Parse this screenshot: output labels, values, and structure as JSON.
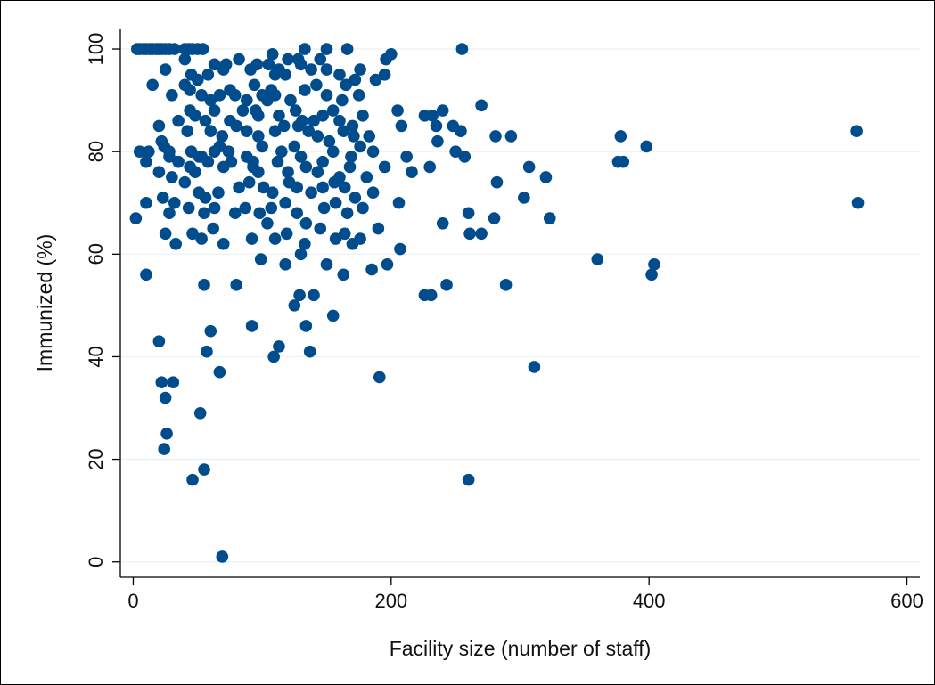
{
  "chart_data": {
    "type": "scatter",
    "title": "",
    "xlabel": "Facility size (number of staff)",
    "ylabel": "Immunized (%)",
    "xlim": [
      -10,
      610
    ],
    "ylim": [
      -3,
      104
    ],
    "xticks": [
      0,
      200,
      400,
      600
    ],
    "yticks": [
      0,
      20,
      40,
      60,
      80,
      100
    ],
    "grid": "horizontal",
    "marker_color": "#004c8c",
    "points": [
      [
        3,
        100
      ],
      [
        5,
        100
      ],
      [
        8,
        100
      ],
      [
        10,
        100
      ],
      [
        13,
        100
      ],
      [
        15,
        100
      ],
      [
        18,
        100
      ],
      [
        20,
        100
      ],
      [
        22,
        100
      ],
      [
        25,
        100
      ],
      [
        28,
        100
      ],
      [
        32,
        100
      ],
      [
        40,
        100
      ],
      [
        43,
        100
      ],
      [
        46,
        100
      ],
      [
        50,
        100
      ],
      [
        54,
        100
      ],
      [
        133,
        100
      ],
      [
        150,
        100
      ],
      [
        166,
        100
      ],
      [
        255,
        100
      ],
      [
        200,
        99
      ],
      [
        108,
        99
      ],
      [
        120,
        98
      ],
      [
        128,
        98
      ],
      [
        145,
        98
      ],
      [
        40,
        98
      ],
      [
        63,
        97
      ],
      [
        72,
        97
      ],
      [
        96,
        97
      ],
      [
        105,
        97
      ],
      [
        113,
        96
      ],
      [
        130,
        97
      ],
      [
        150,
        96
      ],
      [
        160,
        95
      ],
      [
        176,
        96
      ],
      [
        188,
        94
      ],
      [
        195,
        95
      ],
      [
        196,
        98
      ],
      [
        25,
        96
      ],
      [
        45,
        95
      ],
      [
        50,
        94
      ],
      [
        58,
        95
      ],
      [
        70,
        96
      ],
      [
        82,
        98
      ],
      [
        91,
        96
      ],
      [
        94,
        93
      ],
      [
        100,
        91
      ],
      [
        107,
        92
      ],
      [
        110,
        95
      ],
      [
        118,
        95
      ],
      [
        138,
        96
      ],
      [
        142,
        93
      ],
      [
        165,
        93
      ],
      [
        172,
        94
      ],
      [
        15,
        93
      ],
      [
        30,
        91
      ],
      [
        40,
        93
      ],
      [
        44,
        92
      ],
      [
        53,
        91
      ],
      [
        60,
        90
      ],
      [
        67,
        91
      ],
      [
        75,
        92
      ],
      [
        79,
        91
      ],
      [
        88,
        90
      ],
      [
        95,
        88
      ],
      [
        104,
        90
      ],
      [
        110,
        91
      ],
      [
        122,
        90
      ],
      [
        133,
        92
      ],
      [
        150,
        91
      ],
      [
        162,
        90
      ],
      [
        175,
        91
      ],
      [
        44,
        88
      ],
      [
        48,
        87
      ],
      [
        56,
        86
      ],
      [
        63,
        88
      ],
      [
        75,
        86
      ],
      [
        85,
        88
      ],
      [
        97,
        87
      ],
      [
        113,
        87
      ],
      [
        126,
        88
      ],
      [
        131,
        86
      ],
      [
        140,
        86
      ],
      [
        147,
        87
      ],
      [
        155,
        88
      ],
      [
        160,
        86
      ],
      [
        170,
        85
      ],
      [
        178,
        87
      ],
      [
        205,
        88
      ],
      [
        240,
        88
      ],
      [
        248,
        85
      ],
      [
        232,
        87
      ],
      [
        20,
        85
      ],
      [
        35,
        86
      ],
      [
        42,
        84
      ],
      [
        60,
        84
      ],
      [
        69,
        83
      ],
      [
        80,
        85
      ],
      [
        88,
        84
      ],
      [
        97,
        83
      ],
      [
        110,
        84
      ],
      [
        117,
        85
      ],
      [
        128,
        85
      ],
      [
        136,
        84
      ],
      [
        143,
        83
      ],
      [
        152,
        82
      ],
      [
        163,
        84
      ],
      [
        171,
        83
      ],
      [
        183,
        83
      ],
      [
        208,
        85
      ],
      [
        254,
        84
      ],
      [
        235,
        85
      ],
      [
        270,
        89
      ],
      [
        22,
        82
      ],
      [
        24,
        81
      ],
      [
        28,
        80
      ],
      [
        45,
        80
      ],
      [
        51,
        79
      ],
      [
        63,
        80
      ],
      [
        67,
        81
      ],
      [
        74,
        80
      ],
      [
        88,
        79
      ],
      [
        93,
        78
      ],
      [
        100,
        81
      ],
      [
        115,
        80
      ],
      [
        125,
        81
      ],
      [
        130,
        79
      ],
      [
        147,
        78
      ],
      [
        155,
        80
      ],
      [
        169,
        79
      ],
      [
        176,
        81
      ],
      [
        186,
        80
      ],
      [
        212,
        79
      ],
      [
        236,
        82
      ],
      [
        250,
        80
      ],
      [
        257,
        79
      ],
      [
        281,
        83
      ],
      [
        293,
        83
      ],
      [
        5,
        80
      ],
      [
        10,
        78
      ],
      [
        12,
        80
      ],
      [
        28,
        79
      ],
      [
        35,
        78
      ],
      [
        44,
        77
      ],
      [
        48,
        76
      ],
      [
        53,
        79
      ],
      [
        58,
        78
      ],
      [
        70,
        77
      ],
      [
        76,
        78
      ],
      [
        93,
        77
      ],
      [
        97,
        76
      ],
      [
        112,
        78
      ],
      [
        120,
        76
      ],
      [
        134,
        77
      ],
      [
        143,
        76
      ],
      [
        160,
        75
      ],
      [
        168,
        77
      ],
      [
        181,
        75
      ],
      [
        195,
        77
      ],
      [
        216,
        76
      ],
      [
        230,
        77
      ],
      [
        307,
        77
      ],
      [
        320,
        75
      ],
      [
        376,
        78
      ],
      [
        380,
        78
      ],
      [
        398,
        81
      ],
      [
        378,
        83
      ],
      [
        20,
        76
      ],
      [
        30,
        75
      ],
      [
        40,
        74
      ],
      [
        51,
        72
      ],
      [
        56,
        71
      ],
      [
        66,
        72
      ],
      [
        82,
        73
      ],
      [
        90,
        74
      ],
      [
        101,
        73
      ],
      [
        108,
        72
      ],
      [
        121,
        74
      ],
      [
        127,
        73
      ],
      [
        138,
        72
      ],
      [
        147,
        73
      ],
      [
        156,
        74
      ],
      [
        164,
        73
      ],
      [
        172,
        71
      ],
      [
        186,
        72
      ],
      [
        206,
        70
      ],
      [
        260,
        68
      ],
      [
        282,
        74
      ],
      [
        303,
        71
      ],
      [
        10,
        70
      ],
      [
        23,
        71
      ],
      [
        32,
        70
      ],
      [
        43,
        69
      ],
      [
        55,
        68
      ],
      [
        63,
        69
      ],
      [
        79,
        68
      ],
      [
        87,
        69
      ],
      [
        98,
        68
      ],
      [
        107,
        69
      ],
      [
        118,
        70
      ],
      [
        127,
        68
      ],
      [
        134,
        66
      ],
      [
        148,
        69
      ],
      [
        157,
        70
      ],
      [
        166,
        68
      ],
      [
        178,
        69
      ],
      [
        190,
        65
      ],
      [
        240,
        66
      ],
      [
        270,
        64
      ],
      [
        280,
        67
      ],
      [
        323,
        67
      ],
      [
        562,
        70
      ],
      [
        2,
        67
      ],
      [
        28,
        68
      ],
      [
        46,
        64
      ],
      [
        53,
        63
      ],
      [
        62,
        65
      ],
      [
        70,
        62
      ],
      [
        92,
        63
      ],
      [
        104,
        66
      ],
      [
        110,
        63
      ],
      [
        119,
        64
      ],
      [
        133,
        62
      ],
      [
        145,
        65
      ],
      [
        157,
        63
      ],
      [
        164,
        64
      ],
      [
        176,
        63
      ],
      [
        197,
        58
      ],
      [
        207,
        61
      ],
      [
        261,
        64
      ],
      [
        360,
        59
      ],
      [
        25,
        64
      ],
      [
        33,
        62
      ],
      [
        55,
        54
      ],
      [
        80,
        54
      ],
      [
        99,
        59
      ],
      [
        118,
        58
      ],
      [
        130,
        60
      ],
      [
        150,
        58
      ],
      [
        163,
        56
      ],
      [
        170,
        62
      ],
      [
        185,
        57
      ],
      [
        243,
        54
      ],
      [
        289,
        54
      ],
      [
        402,
        56
      ],
      [
        404,
        58
      ],
      [
        10,
        56
      ],
      [
        92,
        46
      ],
      [
        113,
        42
      ],
      [
        109,
        40
      ],
      [
        125,
        50
      ],
      [
        129,
        52
      ],
      [
        140,
        52
      ],
      [
        134,
        46
      ],
      [
        137,
        41
      ],
      [
        155,
        48
      ],
      [
        226,
        52
      ],
      [
        231,
        52
      ],
      [
        226,
        87
      ],
      [
        20,
        43
      ],
      [
        60,
        45
      ],
      [
        57,
        41
      ],
      [
        67,
        37
      ],
      [
        191,
        36
      ],
      [
        311,
        38
      ],
      [
        22,
        35
      ],
      [
        31,
        35
      ],
      [
        25,
        32
      ],
      [
        52,
        29
      ],
      [
        26,
        25
      ],
      [
        24,
        22
      ],
      [
        55,
        18
      ],
      [
        46,
        16
      ],
      [
        260,
        16
      ],
      [
        69,
        1
      ],
      [
        561,
        84
      ]
    ]
  }
}
